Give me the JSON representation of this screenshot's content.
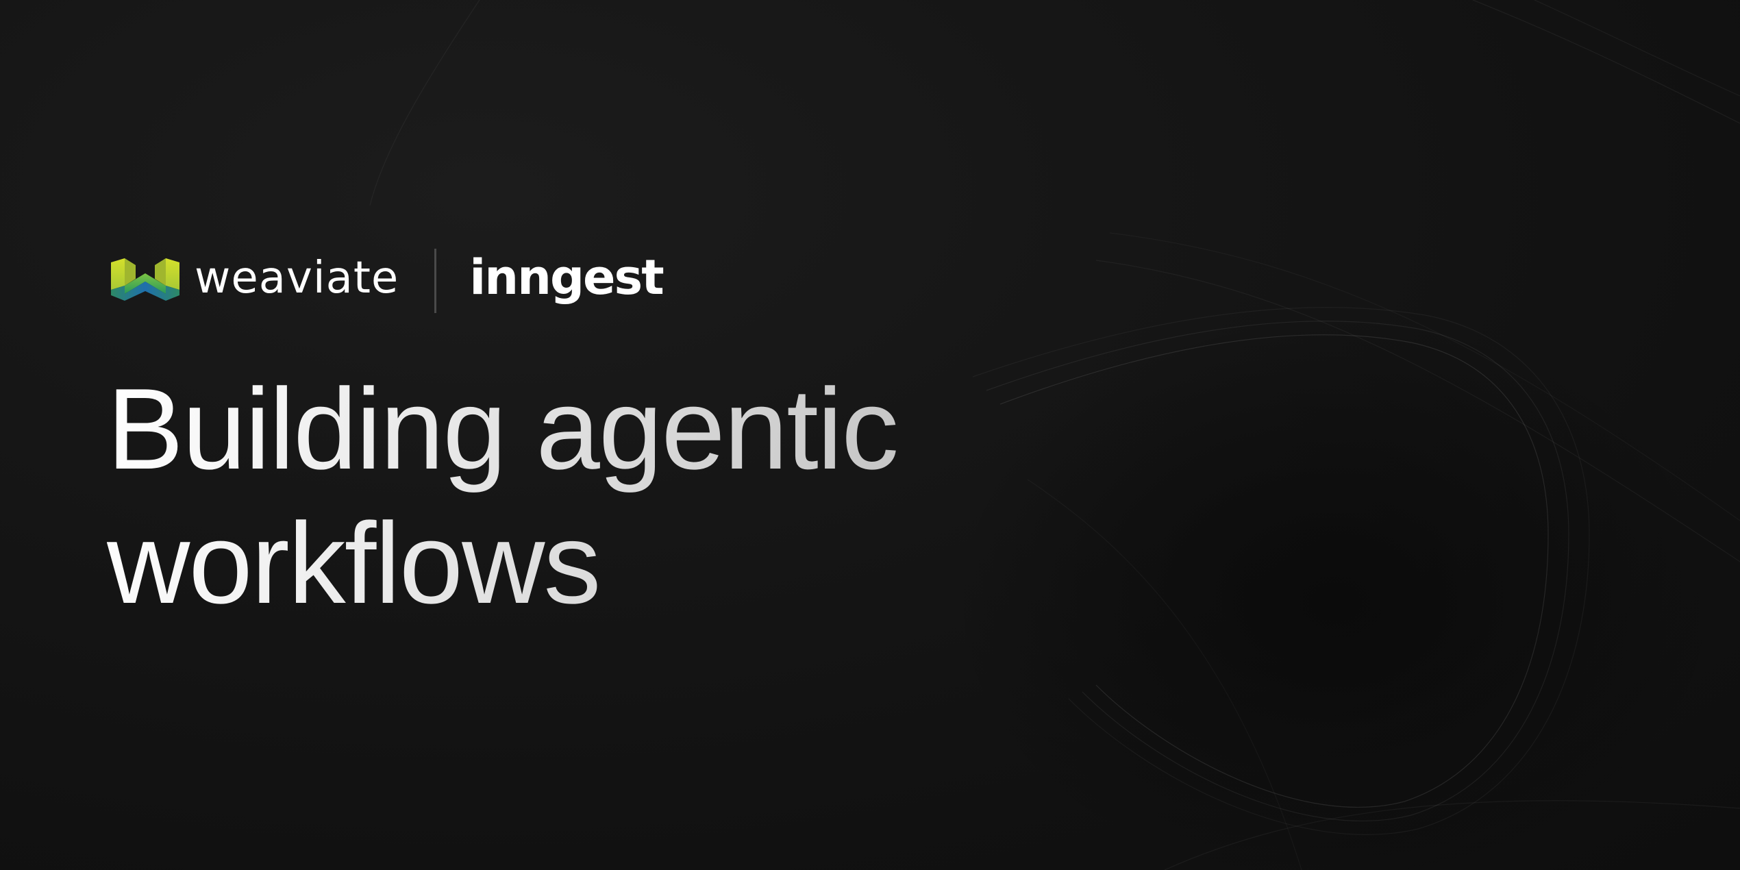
{
  "brand": {
    "partner_one": {
      "name": "weaviate",
      "icon": "weaviate-logo-icon",
      "icon_colors": [
        "#c8d92b",
        "#7ec242",
        "#2e9c57",
        "#1f6fb0"
      ]
    },
    "partner_two": {
      "name": "inngest"
    }
  },
  "headline": {
    "line1": "Building agentic",
    "line2": "workflows"
  },
  "colors": {
    "background": "#121212",
    "text": "#ffffff",
    "divider": "#4a4a4a"
  }
}
